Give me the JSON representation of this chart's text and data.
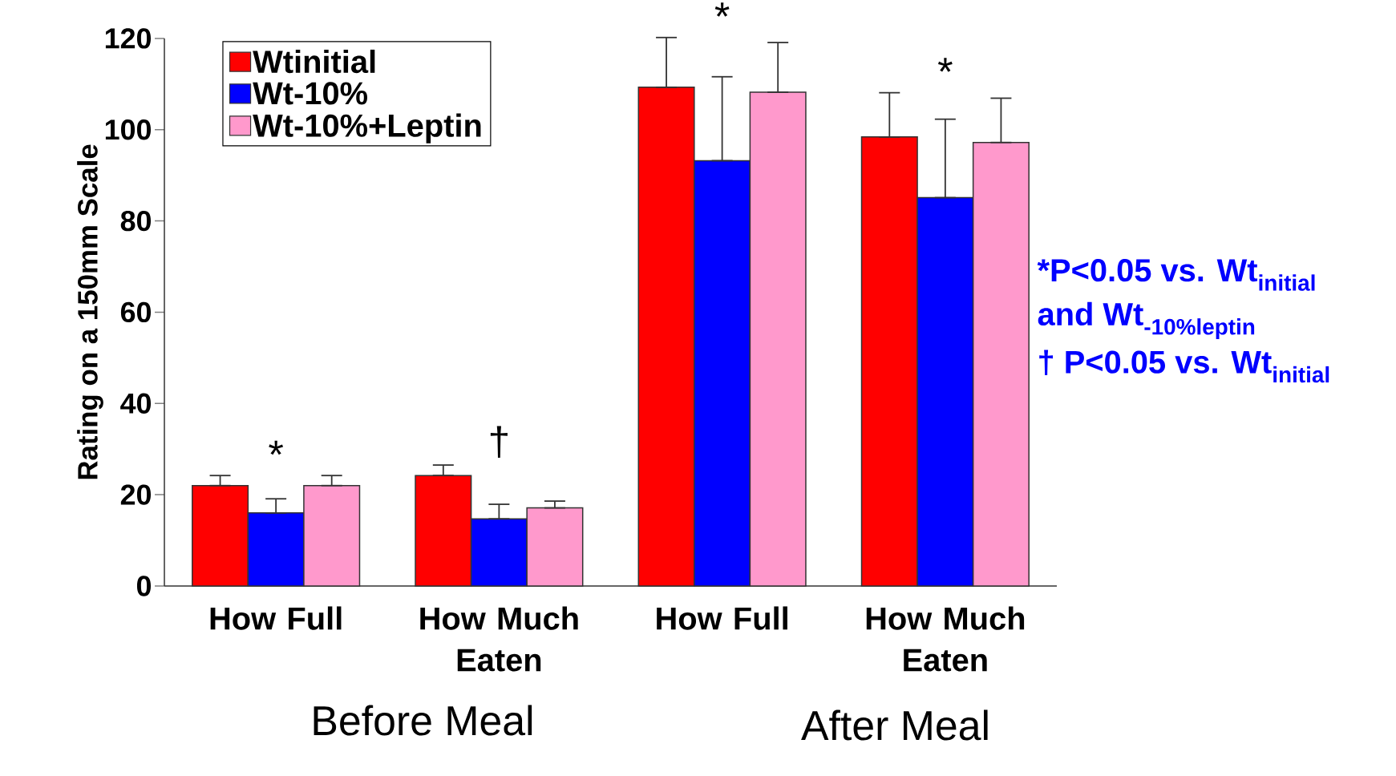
{
  "chart_data": {
    "type": "bar",
    "ylabel": "Rating on a 150mm Scale",
    "categories": [
      "How Full",
      "How Much Eaten",
      "How Full",
      "How Much Eaten"
    ],
    "series": [
      {
        "name": "Wtinitial",
        "color": "#ff0000",
        "values": [
          22,
          24.2,
          109.3,
          98.4
        ],
        "errors": [
          [
            22,
            24.2
          ],
          [
            24.2,
            26.5
          ],
          [
            109.3,
            120.2
          ],
          [
            98.4,
            108.1
          ]
        ]
      },
      {
        "name": "Wt-10%",
        "color": "#0000ff",
        "values": [
          16,
          14.7,
          93.2,
          85.1
        ],
        "errors": [
          [
            16,
            19.1
          ],
          [
            14.7,
            17.9
          ],
          [
            93.2,
            111.6
          ],
          [
            85.1,
            102.3
          ]
        ]
      },
      {
        "name": "Wt-10%+Leptin",
        "color": "#ff99cc",
        "values": [
          22,
          17.1,
          108.2,
          97.2
        ],
        "errors": [
          [
            22,
            24.2
          ],
          [
            17.1,
            18.6
          ],
          [
            108.2,
            119.1
          ],
          [
            97.2,
            106.9
          ]
        ]
      }
    ],
    "ylim": [
      0,
      120
    ],
    "yticks": [
      0,
      20,
      40,
      60,
      80,
      100,
      120
    ],
    "grid": false,
    "legend": "top left",
    "annotations": [
      "*",
      "†",
      "*",
      "*",
      "Before Meal",
      "After Meal",
      "*P<0.05 vs. Wt$_{initial}$",
      "and Wt$_{-10%leptin}$",
      "† P<0.05 vs. Wt$_{initial}$"
    ]
  }
}
